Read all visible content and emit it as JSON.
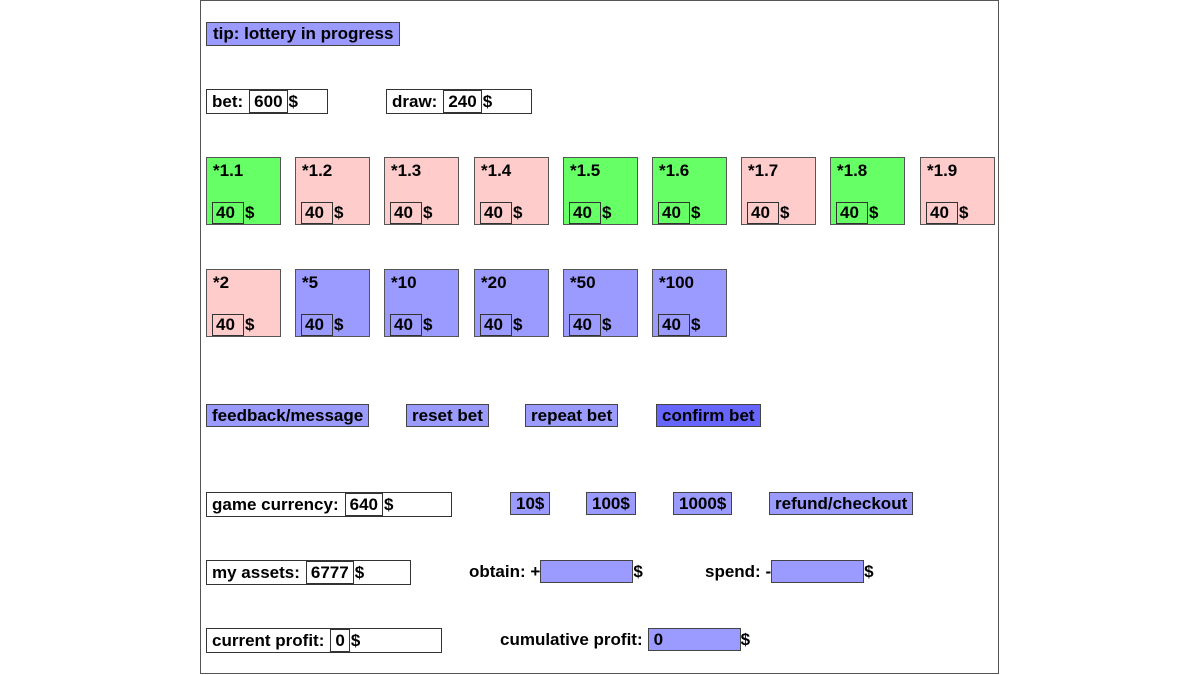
{
  "tip": "tip: lottery in progress",
  "bet": {
    "label": "bet:",
    "value": "600",
    "unit": "$"
  },
  "draw": {
    "label": "draw:",
    "value": "240",
    "unit": "$"
  },
  "cards": [
    {
      "mult": "*1.1",
      "amount": "40",
      "unit": "$",
      "color": "green"
    },
    {
      "mult": "*1.2",
      "amount": "40",
      "unit": "$",
      "color": "pink"
    },
    {
      "mult": "*1.3",
      "amount": "40",
      "unit": "$",
      "color": "pink"
    },
    {
      "mult": "*1.4",
      "amount": "40",
      "unit": "$",
      "color": "pink"
    },
    {
      "mult": "*1.5",
      "amount": "40",
      "unit": "$",
      "color": "green"
    },
    {
      "mult": "*1.6",
      "amount": "40",
      "unit": "$",
      "color": "green"
    },
    {
      "mult": "*1.7",
      "amount": "40",
      "unit": "$",
      "color": "pink"
    },
    {
      "mult": "*1.8",
      "amount": "40",
      "unit": "$",
      "color": "green"
    },
    {
      "mult": "*1.9",
      "amount": "40",
      "unit": "$",
      "color": "pink"
    },
    {
      "mult": "*2",
      "amount": "40",
      "unit": "$",
      "color": "pink"
    },
    {
      "mult": "*5",
      "amount": "40",
      "unit": "$",
      "color": "blue"
    },
    {
      "mult": "*10",
      "amount": "40",
      "unit": "$",
      "color": "blue"
    },
    {
      "mult": "*20",
      "amount": "40",
      "unit": "$",
      "color": "blue"
    },
    {
      "mult": "*50",
      "amount": "40",
      "unit": "$",
      "color": "blue"
    },
    {
      "mult": "*100",
      "amount": "40",
      "unit": "$",
      "color": "blue"
    }
  ],
  "actions": {
    "feedback": "feedback/message",
    "reset": "reset bet",
    "repeat": "repeat bet",
    "confirm": "confirm bet"
  },
  "game_currency": {
    "label": "game currency:",
    "value": "640",
    "unit": "$"
  },
  "topups": {
    "ten": "10$",
    "hundred": "100$",
    "thousand": "1000$",
    "refund": "refund/checkout"
  },
  "assets": {
    "label": "my assets:",
    "value": "6777",
    "unit": "$"
  },
  "obtain": {
    "label": "obtain: +",
    "value": "",
    "unit": "$"
  },
  "spend": {
    "label": "spend: -",
    "value": "",
    "unit": "$"
  },
  "current_profit": {
    "label": "current profit:",
    "value": "0",
    "unit": "$"
  },
  "cumulative_profit": {
    "label": "cumulative profit:",
    "value": "0",
    "unit": "$"
  },
  "colors": {
    "green": "#66ff66",
    "pink": "#ffcccc",
    "blue": "#9a9aff",
    "confirm": "#6666ff"
  }
}
